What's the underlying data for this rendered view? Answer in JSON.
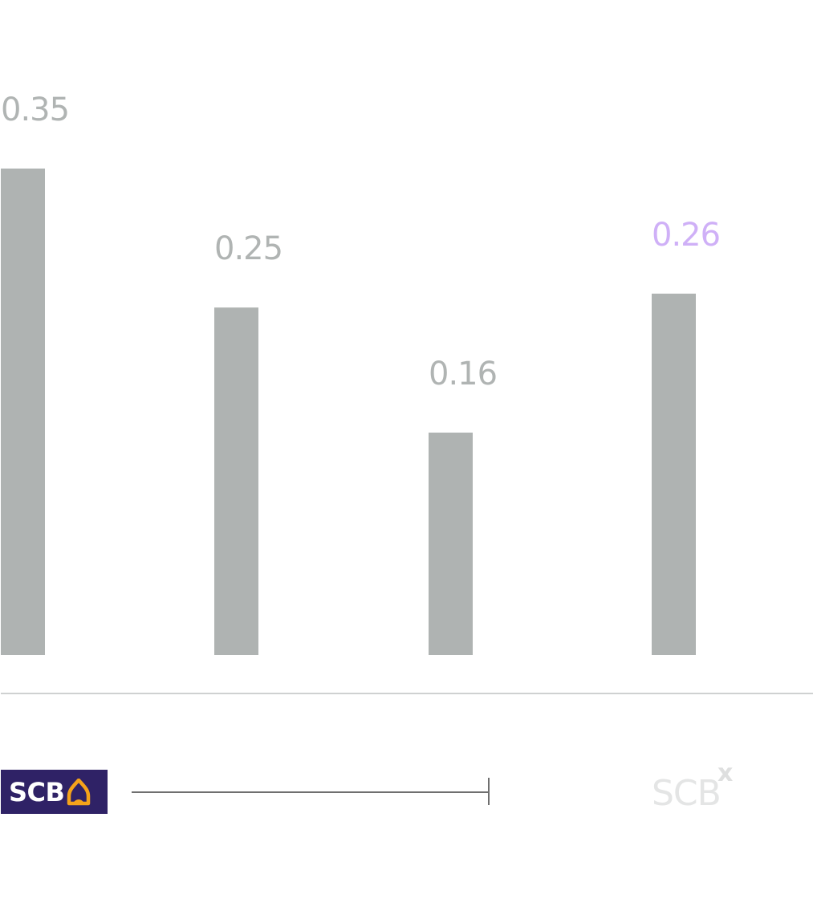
{
  "chart_data": {
    "type": "bar",
    "categories": [],
    "values": [
      0.35,
      0.25,
      0.16,
      0.26
    ],
    "labels": [
      "0.35",
      "0.25",
      "0.16",
      "0.26"
    ],
    "ylim": [
      0,
      0.35
    ],
    "grid": false,
    "colors": {
      "bar": "#afb3b2",
      "label": "#b0b4b3",
      "highlight_label": "#cfb0f7",
      "baseline": "#cfd1d1"
    },
    "highlight_index": 3
  },
  "footer": {
    "left_logo": {
      "text": "SCB",
      "icon": "scb-bell-icon",
      "bg": "#2f2266",
      "icon_color": "#f5a31a"
    },
    "right_logo": {
      "text": "SCB",
      "superscript": "x"
    }
  }
}
